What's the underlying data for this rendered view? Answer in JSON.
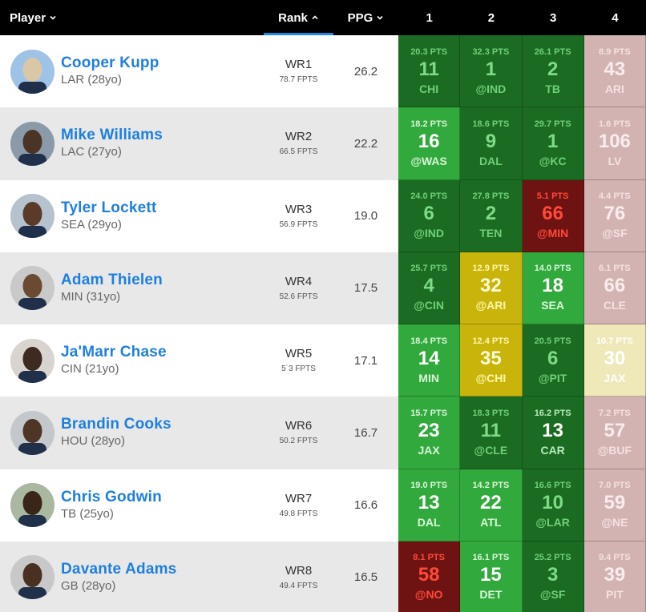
{
  "header": {
    "player_label": "Player",
    "rank_label": "Rank",
    "ppg_label": "PPG",
    "weeks": [
      "1",
      "2",
      "3",
      "4"
    ]
  },
  "colors": {
    "header_bg": "#000000",
    "name_blue": "#1e7fe0",
    "sort_underline": "#1e88e5"
  },
  "rows": [
    {
      "name": "Cooper Kupp",
      "team": "LAR (28yo)",
      "rank": "WR1",
      "fpts": "78.7 FPTS",
      "ppg": "26.2",
      "matchups": [
        {
          "pts": "20.3 PTS",
          "rank": "11",
          "opp": "CHI",
          "bg": "#1c6b23",
          "fg": "#6fd078",
          "rfg": "#7edb86"
        },
        {
          "pts": "32.3 PTS",
          "rank": "1",
          "opp": "@IND",
          "bg": "#1c6b23",
          "fg": "#6fd078",
          "rfg": "#7edb86"
        },
        {
          "pts": "26.1 PTS",
          "rank": "2",
          "opp": "TB",
          "bg": "#1c6b23",
          "fg": "#6fd078",
          "rfg": "#7edb86"
        },
        {
          "pts": "8.9 PTS",
          "rank": "43",
          "opp": "ARI",
          "bg": "#d3b2b2",
          "fg": "#f5e1e1",
          "rfg": "#f8ecec"
        }
      ]
    },
    {
      "name": "Mike Williams",
      "team": "LAC (27yo)",
      "rank": "WR2",
      "fpts": "66.5 FPTS",
      "ppg": "22.2",
      "matchups": [
        {
          "pts": "18.2 PTS",
          "rank": "16",
          "opp": "@WAS",
          "bg": "#32a93c",
          "fg": "#d8f5da",
          "rfg": "#ffffff"
        },
        {
          "pts": "18.6 PTS",
          "rank": "9",
          "opp": "DAL",
          "bg": "#1c6b23",
          "fg": "#6fd078",
          "rfg": "#7edb86"
        },
        {
          "pts": "29.7 PTS",
          "rank": "1",
          "opp": "@KC",
          "bg": "#1c6b23",
          "fg": "#6fd078",
          "rfg": "#7edb86"
        },
        {
          "pts": "1.6 PTS",
          "rank": "106",
          "opp": "LV",
          "bg": "#d3b2b2",
          "fg": "#f5e1e1",
          "rfg": "#f8ecec"
        }
      ]
    },
    {
      "name": "Tyler Lockett",
      "team": "SEA (29yo)",
      "rank": "WR3",
      "fpts": "56.9 FPTS",
      "ppg": "19.0",
      "matchups": [
        {
          "pts": "24.0 PTS",
          "rank": "6",
          "opp": "@IND",
          "bg": "#1c6b23",
          "fg": "#6fd078",
          "rfg": "#7edb86"
        },
        {
          "pts": "27.8 PTS",
          "rank": "2",
          "opp": "TEN",
          "bg": "#1c6b23",
          "fg": "#6fd078",
          "rfg": "#7edb86"
        },
        {
          "pts": "5.1 PTS",
          "rank": "66",
          "opp": "@MIN",
          "bg": "#6e1212",
          "fg": "#ff4a3a",
          "rfg": "#ff4a3a"
        },
        {
          "pts": "4.4 PTS",
          "rank": "76",
          "opp": "@SF",
          "bg": "#d3b2b2",
          "fg": "#f5e1e1",
          "rfg": "#f8ecec"
        }
      ]
    },
    {
      "name": "Adam Thielen",
      "team": "MIN (31yo)",
      "rank": "WR4",
      "fpts": "52.6 FPTS",
      "ppg": "17.5",
      "matchups": [
        {
          "pts": "25.7 PTS",
          "rank": "4",
          "opp": "@CIN",
          "bg": "#1c6b23",
          "fg": "#6fd078",
          "rfg": "#7edb86"
        },
        {
          "pts": "12.9 PTS",
          "rank": "32",
          "opp": "@ARI",
          "bg": "#c9b40c",
          "fg": "#fff6a8",
          "rfg": "#fffbd8"
        },
        {
          "pts": "14.0 PTS",
          "rank": "18",
          "opp": "SEA",
          "bg": "#32a93c",
          "fg": "#d8f5da",
          "rfg": "#ffffff"
        },
        {
          "pts": "6.1 PTS",
          "rank": "66",
          "opp": "CLE",
          "bg": "#d3b2b2",
          "fg": "#f5e1e1",
          "rfg": "#f8ecec"
        }
      ]
    },
    {
      "name": "Ja'Marr Chase",
      "team": "CIN (21yo)",
      "rank": "WR5",
      "fpts": "5˙3 FPTS",
      "ppg": "17.1",
      "matchups": [
        {
          "pts": "18.4 PTS",
          "rank": "14",
          "opp": "MIN",
          "bg": "#32a93c",
          "fg": "#d8f5da",
          "rfg": "#ffffff"
        },
        {
          "pts": "12.4 PTS",
          "rank": "35",
          "opp": "@CHI",
          "bg": "#c9b40c",
          "fg": "#fff6a8",
          "rfg": "#fffbd8"
        },
        {
          "pts": "20.5 PTS",
          "rank": "6",
          "opp": "@PIT",
          "bg": "#1c6b23",
          "fg": "#6fd078",
          "rfg": "#7edb86"
        },
        {
          "pts": "10.7 PTS",
          "rank": "30",
          "opp": "JAX",
          "bg": "#efe8b8",
          "fg": "#ffffff",
          "rfg": "#ffffff"
        }
      ]
    },
    {
      "name": "Brandin Cooks",
      "team": "HOU (28yo)",
      "rank": "WR6",
      "fpts": "50.2 FPTS",
      "ppg": "16.7",
      "matchups": [
        {
          "pts": "15.7 PTS",
          "rank": "23",
          "opp": "JAX",
          "bg": "#32a93c",
          "fg": "#d8f5da",
          "rfg": "#ffffff"
        },
        {
          "pts": "18.3 PTS",
          "rank": "11",
          "opp": "@CLE",
          "bg": "#1c6b23",
          "fg": "#6fd078",
          "rfg": "#7edb86"
        },
        {
          "pts": "16.2 PTS",
          "rank": "13",
          "opp": "CAR",
          "bg": "#1c6b23",
          "fg": "#b8ecbc",
          "rfg": "#ffffff"
        },
        {
          "pts": "7.2 PTS",
          "rank": "57",
          "opp": "@BUF",
          "bg": "#d3b2b2",
          "fg": "#f5e1e1",
          "rfg": "#f8ecec"
        }
      ]
    },
    {
      "name": "Chris Godwin",
      "team": "TB (25yo)",
      "rank": "WR7",
      "fpts": "49.8 FPTS",
      "ppg": "16.6",
      "matchups": [
        {
          "pts": "19.0 PTS",
          "rank": "13",
          "opp": "DAL",
          "bg": "#32a93c",
          "fg": "#d8f5da",
          "rfg": "#ffffff"
        },
        {
          "pts": "14.2 PTS",
          "rank": "22",
          "opp": "ATL",
          "bg": "#32a93c",
          "fg": "#d8f5da",
          "rfg": "#ffffff"
        },
        {
          "pts": "16.6 PTS",
          "rank": "10",
          "opp": "@LAR",
          "bg": "#1c6b23",
          "fg": "#6fd078",
          "rfg": "#7edb86"
        },
        {
          "pts": "7.0 PTS",
          "rank": "59",
          "opp": "@NE",
          "bg": "#d3b2b2",
          "fg": "#f5e1e1",
          "rfg": "#f8ecec"
        }
      ]
    },
    {
      "name": "Davante Adams",
      "team": "GB (28yo)",
      "rank": "WR8",
      "fpts": "49.4 FPTS",
      "ppg": "16.5",
      "matchups": [
        {
          "pts": "8.1 PTS",
          "rank": "58",
          "opp": "@NO",
          "bg": "#6e1212",
          "fg": "#ff4a3a",
          "rfg": "#ff4a3a"
        },
        {
          "pts": "16.1 PTS",
          "rank": "15",
          "opp": "DET",
          "bg": "#32a93c",
          "fg": "#d8f5da",
          "rfg": "#ffffff"
        },
        {
          "pts": "25.2 PTS",
          "rank": "3",
          "opp": "@SF",
          "bg": "#1c6b23",
          "fg": "#6fd078",
          "rfg": "#7edb86"
        },
        {
          "pts": "9.4 PTS",
          "rank": "39",
          "opp": "PIT",
          "bg": "#d3b2b2",
          "fg": "#f5e1e1",
          "rfg": "#f8ecec"
        }
      ]
    }
  ]
}
